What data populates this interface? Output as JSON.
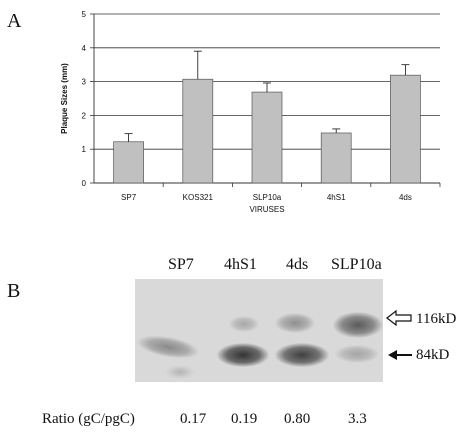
{
  "panel_a": {
    "letter": "A",
    "chart_data": {
      "type": "bar",
      "categories": [
        "SP7",
        "KOS321",
        "SLP10a",
        "4hS1",
        "4ds"
      ],
      "series": [
        {
          "values": [
            1.22,
            3.07,
            2.69,
            1.48,
            3.19
          ],
          "errors": [
            0.24,
            0.83,
            0.27,
            0.12,
            0.31
          ]
        }
      ],
      "title": "",
      "xlabel": "VIRUSES",
      "ylabel": "Plaque Sizes (mm)",
      "ylim": [
        0,
        5
      ],
      "yticks": [
        0,
        1,
        2,
        3,
        4,
        5
      ],
      "grid": true,
      "legend": "none",
      "bar_color": "#c0c0c0"
    }
  },
  "panel_b": {
    "letter": "B",
    "lanes": [
      "SP7",
      "4hS1",
      "4ds",
      "SLP10a"
    ],
    "markers": [
      {
        "label": "116kD",
        "arrow": "open"
      },
      {
        "label": "84kD",
        "arrow": "filled"
      }
    ],
    "ratio_label": "Ratio (gC/pgC)",
    "ratios": [
      "0.17",
      "0.19",
      "0.80",
      "3.3"
    ]
  }
}
